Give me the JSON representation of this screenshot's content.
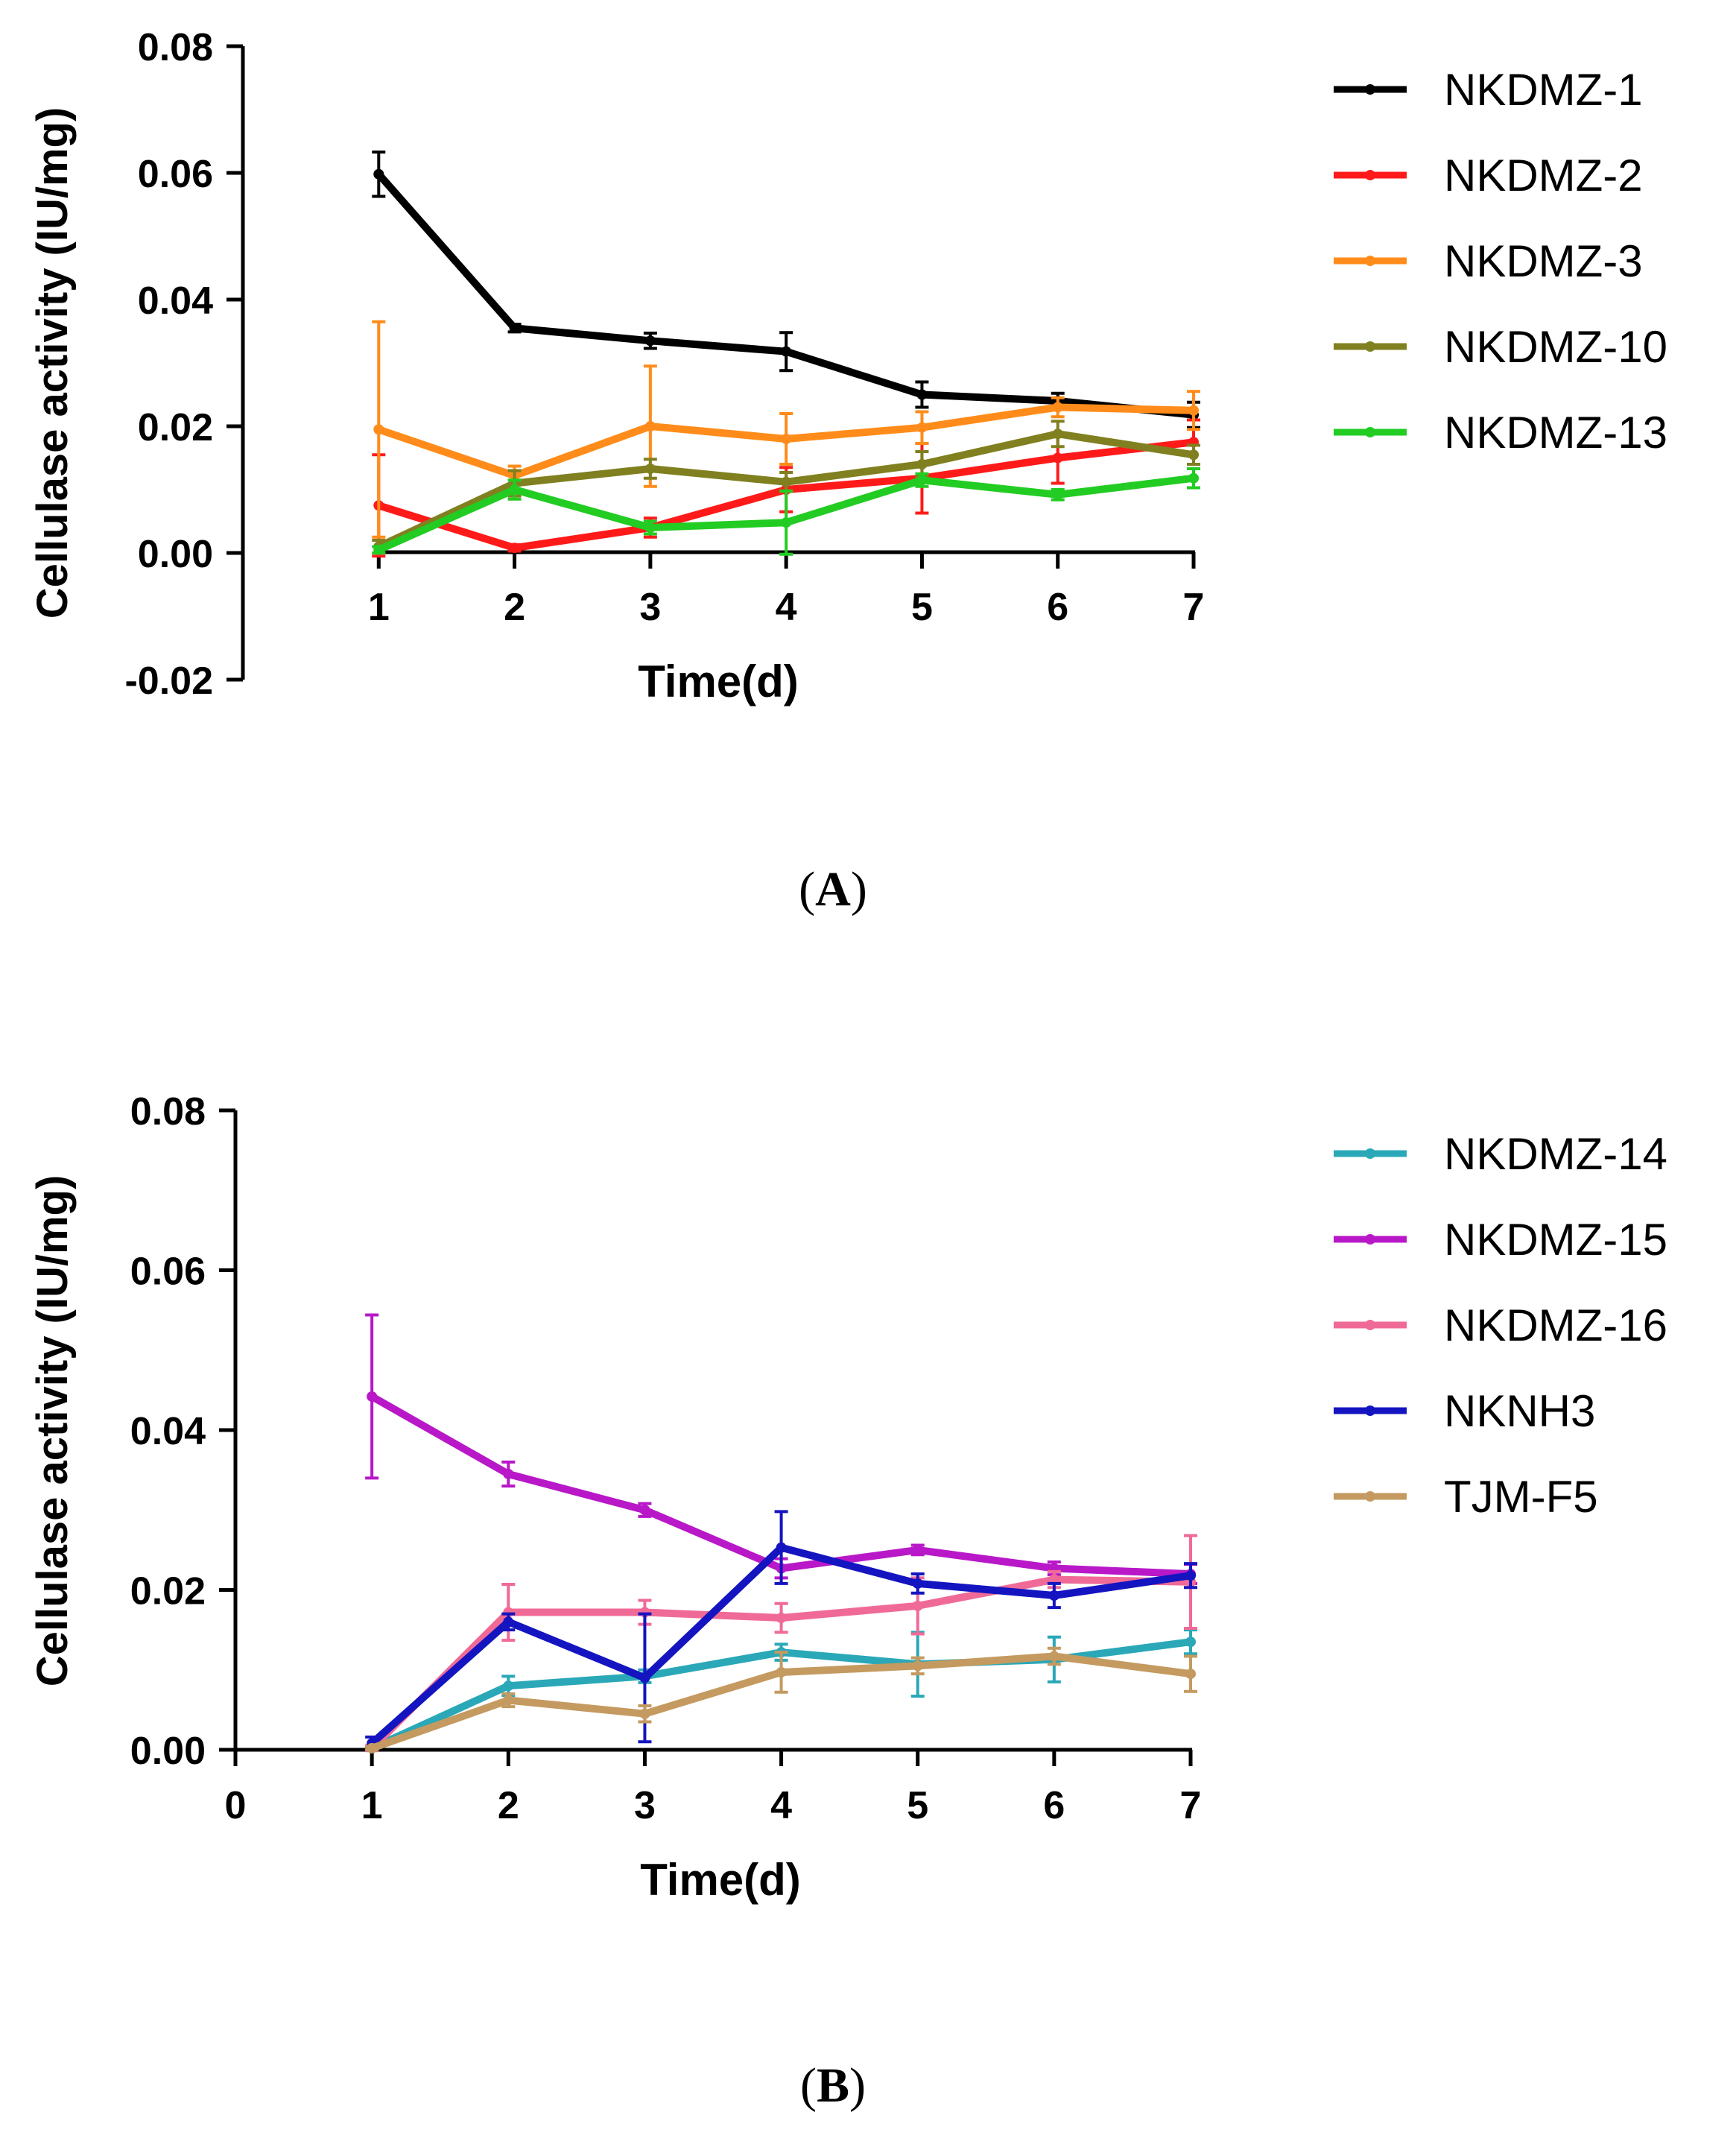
{
  "colors": {
    "NKDMZ-1": "#000000",
    "NKDMZ-2": "#ff1a1a",
    "NKDMZ-3": "#ff8c1a",
    "NKDMZ-10": "#808020",
    "NKDMZ-13": "#22cc22",
    "NKDMZ-14": "#2aa8b8",
    "NKDMZ-15": "#b818c8",
    "NKDMZ-16": "#f06a98",
    "NKNH3": "#1414c0",
    "TJM-F5": "#c49a60"
  },
  "chart_data": [
    {
      "type": "line",
      "panel": "A",
      "caption": "A",
      "xlabel": "Time(d)",
      "ylabel": "Cellulase activity (IU/mg)",
      "xlim": [
        0,
        7
      ],
      "ylim": [
        -0.02,
        0.08
      ],
      "x_ticks": [
        1,
        2,
        3,
        4,
        5,
        6,
        7
      ],
      "x_tick_labels": [
        "1",
        "2",
        "3",
        "4",
        "5",
        "6",
        "7"
      ],
      "y_ticks": [
        -0.02,
        0.0,
        0.02,
        0.04,
        0.06,
        0.08
      ],
      "y_tick_labels": [
        "-0.02",
        "0.00",
        "0.02",
        "0.04",
        "0.06",
        "0.08"
      ],
      "grid": false,
      "legend_position": "right",
      "x": [
        1,
        2,
        3,
        4,
        5,
        6,
        7
      ],
      "series": [
        {
          "name": "NKDMZ-1",
          "values": [
            0.0598,
            0.0355,
            0.0335,
            0.0318,
            0.025,
            0.024,
            0.0218
          ],
          "errors": [
            0.0035,
            0.0006,
            0.0012,
            0.003,
            0.002,
            0.0012,
            0.002
          ]
        },
        {
          "name": "NKDMZ-2",
          "values": [
            0.0075,
            0.0008,
            0.004,
            0.01,
            0.0118,
            0.015,
            0.0175
          ],
          "errors": [
            0.008,
            0.0005,
            0.0015,
            0.0035,
            0.0055,
            0.004,
            0.0035
          ]
        },
        {
          "name": "NKDMZ-3",
          "values": [
            0.0195,
            0.0122,
            0.02,
            0.018,
            0.0198,
            0.023,
            0.0225
          ],
          "errors": [
            0.017,
            0.0015,
            0.0095,
            0.004,
            0.0025,
            0.0015,
            0.003
          ]
        },
        {
          "name": "NKDMZ-10",
          "values": [
            0.001,
            0.011,
            0.0133,
            0.0112,
            0.014,
            0.0188,
            0.0155
          ],
          "errors": [
            0.001,
            0.002,
            0.0015,
            0.0015,
            0.002,
            0.002,
            0.0015
          ]
        },
        {
          "name": "NKDMZ-13",
          "values": [
            0.0005,
            0.01,
            0.004,
            0.0048,
            0.0115,
            0.0092,
            0.0118
          ],
          "errors": [
            0.0005,
            0.0015,
            0.001,
            0.005,
            0.001,
            0.0008,
            0.0015
          ]
        }
      ]
    },
    {
      "type": "line",
      "panel": "B",
      "caption": "B",
      "xlabel": "Time(d)",
      "ylabel": "Cellulase activity (IU/mg)",
      "xlim": [
        0,
        7
      ],
      "ylim": [
        0,
        0.08
      ],
      "x_ticks": [
        0,
        1,
        2,
        3,
        4,
        5,
        6,
        7
      ],
      "x_tick_labels": [
        "0",
        "1",
        "2",
        "3",
        "4",
        "5",
        "6",
        "7"
      ],
      "y_ticks": [
        0.0,
        0.02,
        0.04,
        0.06,
        0.08
      ],
      "y_tick_labels": [
        "0.00",
        "0.02",
        "0.04",
        "0.06",
        "0.08"
      ],
      "grid": false,
      "legend_position": "right",
      "x": [
        1,
        2,
        3,
        4,
        5,
        6,
        7
      ],
      "series": [
        {
          "name": "NKDMZ-14",
          "values": [
            0.0002,
            0.008,
            0.0092,
            0.0122,
            0.0107,
            0.0113,
            0.0135
          ],
          "errors": [
            0.0003,
            0.0012,
            0.0008,
            0.001,
            0.004,
            0.0028,
            0.0015
          ]
        },
        {
          "name": "NKDMZ-15",
          "values": [
            0.0442,
            0.0345,
            0.03,
            0.0227,
            0.025,
            0.0227,
            0.022
          ],
          "errors": [
            0.0102,
            0.0015,
            0.0008,
            0.0012,
            0.0006,
            0.0008,
            0.0012
          ]
        },
        {
          "name": "NKDMZ-16",
          "values": [
            0.0002,
            0.0172,
            0.0172,
            0.0165,
            0.018,
            0.0213,
            0.021
          ],
          "errors": [
            0.0003,
            0.0035,
            0.0015,
            0.0018,
            0.0035,
            0.001,
            0.0058
          ]
        },
        {
          "name": "NKNH3",
          "values": [
            0.0008,
            0.016,
            0.009,
            0.0253,
            0.0208,
            0.0193,
            0.0218
          ],
          "errors": [
            0.0008,
            0.001,
            0.008,
            0.0045,
            0.0012,
            0.0015,
            0.0015
          ]
        },
        {
          "name": "TJM-F5",
          "values": [
            0.0002,
            0.0062,
            0.0045,
            0.0097,
            0.0105,
            0.0117,
            0.0095
          ],
          "errors": [
            0.0002,
            0.0008,
            0.001,
            0.0025,
            0.001,
            0.001,
            0.0022
          ]
        }
      ]
    }
  ]
}
